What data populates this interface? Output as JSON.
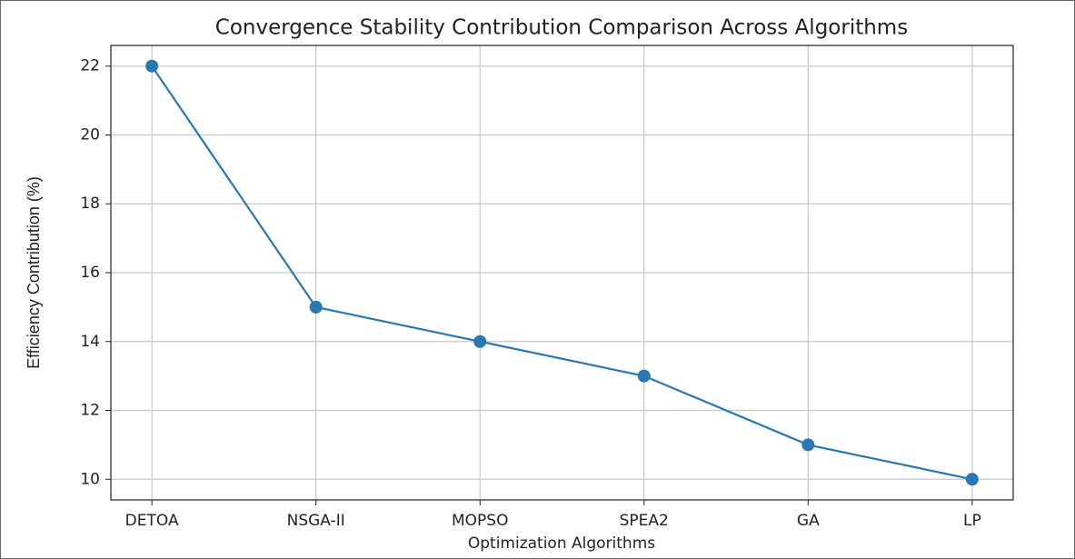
{
  "chart_data": {
    "type": "line",
    "title": "Convergence Stability Contribution Comparison Across Algorithms",
    "x_label": "Optimization Algorithms",
    "y_label": "Efficiency Contribution (%)",
    "categories": [
      "DETOA",
      "NSGA-II",
      "MOPSO",
      "SPEA2",
      "GA",
      "LP"
    ],
    "series": [
      {
        "color": "#2878b5",
        "values": [
          22,
          15,
          14,
          13,
          11,
          10
        ]
      }
    ],
    "ylim": [
      9.4,
      22.6
    ],
    "yticks": [
      10,
      12,
      14,
      16,
      18,
      20,
      22
    ],
    "grid": true
  }
}
